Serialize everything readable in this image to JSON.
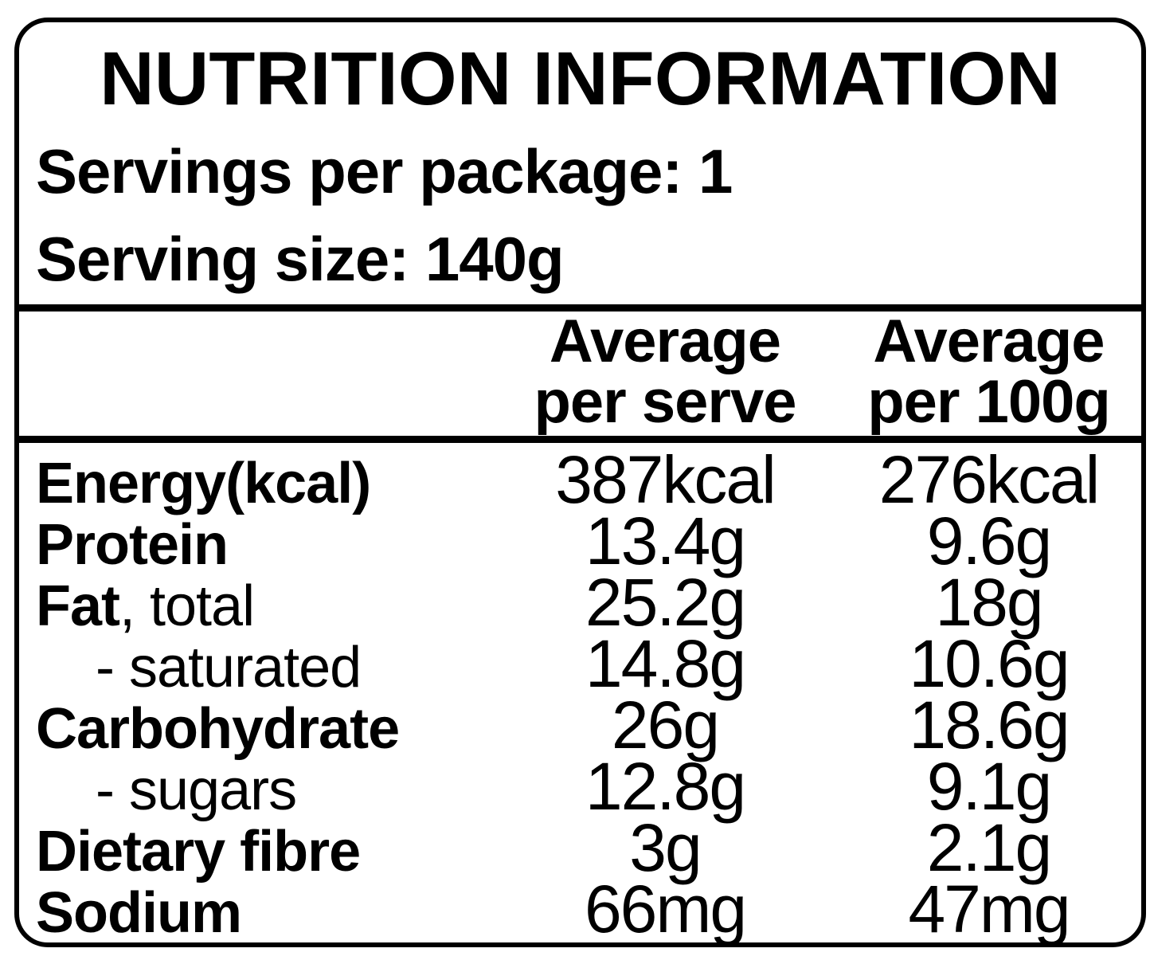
{
  "label": {
    "title": "NUTRITION INFORMATION",
    "servings_line": "Servings per package: 1",
    "serving_size_line": "Serving size: 140g",
    "table": {
      "header": {
        "per_serve": [
          "Average",
          "per serve"
        ],
        "per_100g": [
          "Average",
          "per 100g"
        ]
      },
      "rows": [
        {
          "name_bold": "Energy(kcal)",
          "name_regular": "",
          "per_serve": "387kcal",
          "per_100g": "276kcal"
        },
        {
          "name_bold": "Protein",
          "name_regular": "",
          "per_serve": "13.4g",
          "per_100g": "9.6g"
        },
        {
          "name_bold": "Fat",
          "name_regular": ", total",
          "per_serve": "25.2g",
          "per_100g": "18g"
        },
        {
          "name_bold": "",
          "name_regular": "- saturated",
          "per_serve": "14.8g",
          "per_100g": "10.6g"
        },
        {
          "name_bold": "Carbohydrate",
          "name_regular": "",
          "per_serve": "26g",
          "per_100g": "18.6g"
        },
        {
          "name_bold": "",
          "name_regular": "- sugars",
          "per_serve": "12.8g",
          "per_100g": "9.1g"
        },
        {
          "name_bold": "Dietary fibre",
          "name_regular": "",
          "per_serve": "3g",
          "per_100g": "2.1g"
        },
        {
          "name_bold": "Sodium",
          "name_regular": "",
          "per_serve": "66mg",
          "per_100g": "47mg"
        }
      ]
    },
    "colors": {
      "ink": "#000000",
      "background": "#ffffff"
    }
  }
}
